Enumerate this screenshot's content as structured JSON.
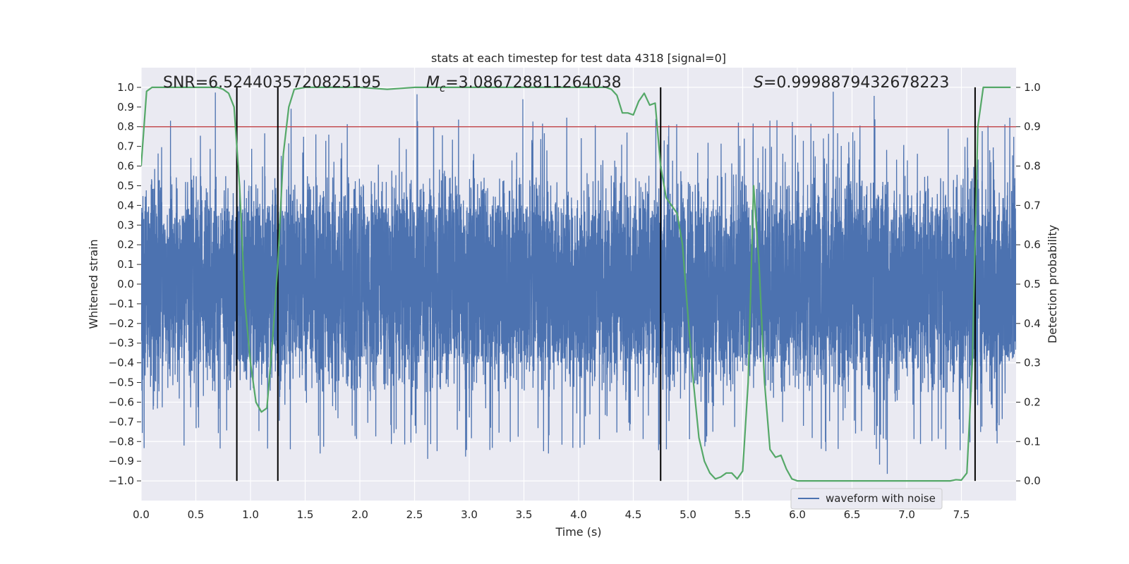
{
  "chart_data": {
    "type": "line",
    "title": "stats at each timestep for test data 4318 [signal=0]",
    "xlabel": "Time (s)",
    "ylabel": "Whitened strain",
    "y2label": "Detection probability",
    "xlim": [
      0.0,
      8.0
    ],
    "ylim": [
      -1.1,
      1.1
    ],
    "y2lim": [
      -0.05,
      1.05
    ],
    "x_ticks": [
      0.0,
      0.5,
      1.0,
      1.5,
      2.0,
      2.5,
      3.0,
      3.5,
      4.0,
      4.5,
      5.0,
      5.5,
      6.0,
      6.5,
      7.0,
      7.5
    ],
    "x_tick_labels": [
      "0.0",
      "0.5",
      "1.0",
      "1.5",
      "2.0",
      "2.5",
      "3.0",
      "3.5",
      "4.0",
      "4.5",
      "5.0",
      "5.5",
      "6.0",
      "6.5",
      "7.0",
      "7.5"
    ],
    "y_ticks": [
      -1.0,
      -0.9,
      -0.8,
      -0.7,
      -0.6,
      -0.5,
      -0.4,
      -0.3,
      -0.2,
      -0.1,
      0.0,
      0.1,
      0.2,
      0.3,
      0.4,
      0.5,
      0.6,
      0.7,
      0.8,
      0.9,
      1.0
    ],
    "y_tick_labels": [
      "−1.0",
      "−0.9",
      "−0.8",
      "−0.7",
      "−0.6",
      "−0.5",
      "−0.4",
      "−0.3",
      "−0.2",
      "−0.1",
      "0.0",
      "0.1",
      "0.2",
      "0.3",
      "0.4",
      "0.5",
      "0.6",
      "0.7",
      "0.8",
      "0.9",
      "1.0"
    ],
    "y2_ticks": [
      0.0,
      0.1,
      0.2,
      0.3,
      0.4,
      0.5,
      0.6,
      0.7,
      0.8,
      0.9,
      1.0
    ],
    "y2_tick_labels": [
      "0.0",
      "0.1",
      "0.2",
      "0.3",
      "0.4",
      "0.5",
      "0.6",
      "0.7",
      "0.8",
      "0.9",
      "1.0"
    ],
    "grid": true,
    "legend": {
      "placement": "bottom-right",
      "entries": [
        "waveform with noise"
      ]
    },
    "annotations": {
      "snr_text": "SNR=6.5244035720825195",
      "mc_prefix": "M",
      "mc_sub": "c",
      "mc_value": "=3.086728811264038",
      "s_prefix": "S",
      "s_value": "=0.9998879432678223"
    },
    "threshold": {
      "axis": "y2",
      "value": 0.9,
      "color": "#c44e52"
    },
    "vertical_lines": [
      0.875,
      1.25,
      4.75,
      7.625
    ],
    "vertical_line_span": [
      -1.0,
      1.0
    ],
    "waveform": {
      "name": "waveform with noise",
      "color": "#4c72b0",
      "duration": 8.0,
      "sample_rate": 2048,
      "core_envelope": 0.4,
      "typical_peak": 0.55,
      "max_abs": 1.0
    },
    "probability_series": {
      "color": "#55a868",
      "x": [
        0.0,
        0.05,
        0.1,
        0.15,
        0.2,
        0.3,
        0.4,
        0.5,
        0.6,
        0.7,
        0.75,
        0.8,
        0.85,
        0.9,
        0.95,
        1.0,
        1.05,
        1.1,
        1.15,
        1.2,
        1.25,
        1.3,
        1.35,
        1.4,
        1.5,
        1.75,
        2.0,
        2.25,
        2.5,
        2.75,
        3.0,
        3.25,
        3.5,
        3.75,
        4.0,
        4.25,
        4.3,
        4.35,
        4.4,
        4.45,
        4.5,
        4.55,
        4.6,
        4.65,
        4.7,
        4.75,
        4.8,
        4.85,
        4.9,
        4.95,
        5.0,
        5.05,
        5.1,
        5.15,
        5.2,
        5.25,
        5.3,
        5.35,
        5.4,
        5.45,
        5.5,
        5.55,
        5.6,
        5.65,
        5.7,
        5.75,
        5.8,
        5.85,
        5.9,
        5.95,
        6.0,
        6.05,
        6.1,
        6.25,
        6.5,
        6.75,
        7.0,
        7.25,
        7.4,
        7.45,
        7.5,
        7.55,
        7.6,
        7.65,
        7.7,
        7.75,
        7.8,
        7.95
      ],
      "values": [
        0.8,
        0.99,
        1.0,
        1.0,
        1.0,
        1.0,
        1.0,
        1.0,
        1.0,
        1.0,
        0.995,
        0.985,
        0.95,
        0.75,
        0.45,
        0.3,
        0.2,
        0.175,
        0.185,
        0.35,
        0.55,
        0.83,
        0.95,
        0.995,
        1.0,
        1.0,
        1.0,
        0.995,
        1.0,
        1.0,
        1.0,
        1.0,
        1.0,
        1.0,
        1.0,
        1.0,
        0.995,
        0.98,
        0.935,
        0.935,
        0.93,
        0.965,
        0.985,
        0.955,
        0.96,
        0.8,
        0.72,
        0.7,
        0.68,
        0.6,
        0.42,
        0.25,
        0.11,
        0.05,
        0.02,
        0.005,
        0.01,
        0.02,
        0.02,
        0.005,
        0.025,
        0.25,
        0.75,
        0.55,
        0.25,
        0.08,
        0.06,
        0.065,
        0.03,
        0.005,
        0.0,
        0.0,
        0.0,
        0.0,
        0.0,
        0.0,
        0.0,
        0.0,
        0.0,
        0.003,
        0.002,
        0.02,
        0.3,
        0.9,
        1.0,
        1.0,
        1.0,
        1.0
      ]
    }
  }
}
